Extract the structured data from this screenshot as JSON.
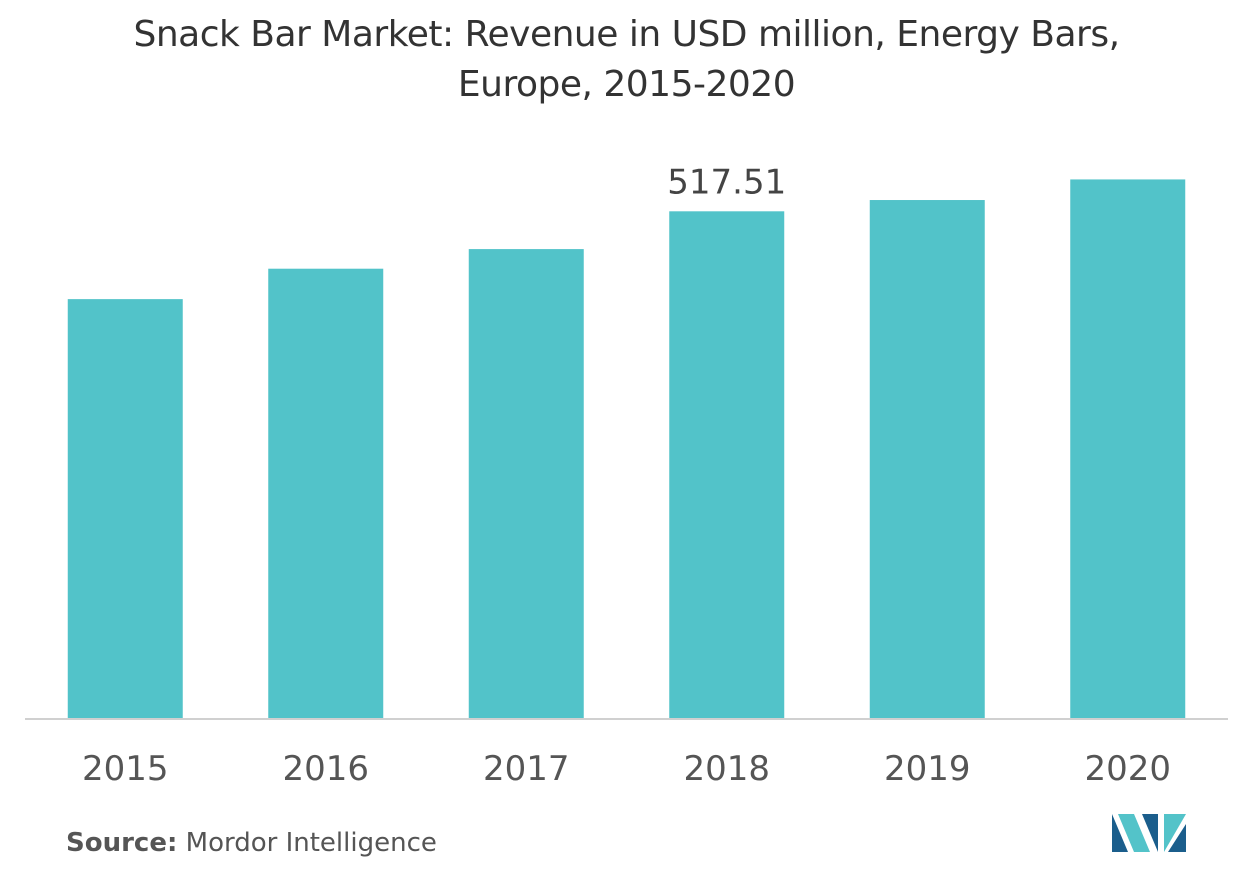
{
  "title": {
    "line1": "Snack Bar Market: Revenue in USD million, Energy Bars,",
    "line2": "Europe, 2015-2020"
  },
  "source": {
    "label": "Source:",
    "value": "Mordor Intelligence"
  },
  "logo": {
    "icon": "mordor-intelligence-logo-icon",
    "colors": [
      "#1b5e8c",
      "#53c3c9"
    ]
  },
  "colors": {
    "bar": "#52c3c9",
    "axis": "#d0d0d0",
    "text": "#555555"
  },
  "chart_data": {
    "type": "bar",
    "title": "Snack Bar Market: Revenue in USD million, Energy Bars, Europe, 2015-2020",
    "categories": [
      "2015",
      "2016",
      "2017",
      "2018",
      "2019",
      "2020"
    ],
    "values": [
      428,
      459,
      479,
      517.51,
      529,
      550
    ],
    "data_labels": [
      null,
      null,
      null,
      "517.51",
      null,
      null
    ],
    "ylim": [
      0,
      580
    ],
    "grid": false,
    "show_y_axis": false
  }
}
